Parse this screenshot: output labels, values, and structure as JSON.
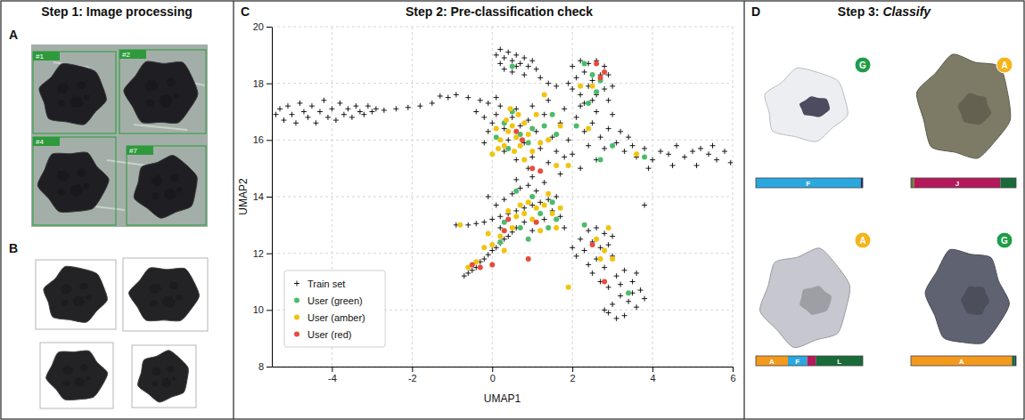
{
  "panels": [
    {
      "title": "Step 1: Image processing",
      "letters": [
        "A",
        "B"
      ],
      "detections": [
        "#1",
        "#2",
        "#4",
        "#7"
      ]
    },
    {
      "title": "Step 2: Pre-classification check",
      "letter": "C"
    },
    {
      "title": "Step 3: Classify",
      "letter": "D",
      "badges": [
        {
          "text": "G",
          "color": "#1f9d48"
        },
        {
          "text": "A",
          "color": "#f4b41a"
        },
        {
          "text": "A",
          "color": "#f4b41a"
        },
        {
          "text": "G",
          "color": "#1f9d48"
        }
      ]
    }
  ],
  "chart_data": [
    {
      "type": "scatter",
      "xlabel": "UMAP1",
      "ylabel": "UMAP2",
      "xlim": [
        -5.5,
        6
      ],
      "ylim": [
        8,
        20
      ],
      "xticks": [
        -4,
        -2,
        0,
        2,
        4,
        6
      ],
      "yticks": [
        8,
        10,
        12,
        14,
        16,
        18,
        20
      ],
      "grid": true,
      "legend": "lower left",
      "series": [
        {
          "name": "Train set",
          "color": "#000000",
          "marker": "plus",
          "x": [
            -5.4,
            -5.3,
            -5.2,
            -5.1,
            -5.0,
            -4.9,
            -4.8,
            -4.7,
            -4.6,
            -4.5,
            -4.4,
            -4.3,
            -4.2,
            -4.1,
            -4.0,
            -3.9,
            -3.8,
            -3.7,
            -3.6,
            -3.5,
            -3.4,
            -3.3,
            -3.2,
            -3.1,
            -3.0,
            -2.9,
            -2.7,
            -2.4,
            -2.1,
            -1.8,
            -1.5,
            -1.3,
            -1.1,
            -0.9,
            -0.6,
            -0.3,
            -0.1,
            -0.4,
            -0.2,
            0.1,
            0.2,
            0.3,
            0.4,
            0.5,
            0.6,
            0.7,
            0.8,
            0.9,
            1.0,
            0.3,
            0.5,
            0.2,
            0.8,
            1.1,
            0.6,
            1.2,
            1.4,
            1.6,
            2.0,
            2.2,
            2.4,
            2.6,
            2.8,
            2.9,
            2.1,
            2.3,
            2.5,
            2.7,
            2.0,
            2.2,
            2.4,
            2.6,
            2.8,
            3.0,
            2.3,
            2.5,
            2.9,
            1.9,
            -0.1,
            0.0,
            0.1,
            0.2,
            0.3,
            0.4,
            0.5,
            0.6,
            0.7,
            0.8,
            0.9,
            1.0,
            1.1,
            1.2,
            1.3,
            1.4,
            1.5,
            1.6,
            1.7,
            1.8,
            1.9,
            2.0,
            2.1,
            2.2,
            2.3,
            2.4,
            2.5,
            2.6,
            2.7,
            2.8,
            2.9,
            3.0,
            3.1,
            3.2,
            3.3,
            3.4,
            3.5,
            1.0,
            1.4,
            0.3,
            0.6,
            2.2,
            2.6,
            1.8,
            0.1,
            -0.2,
            3.6,
            3.8,
            4.0,
            4.2,
            4.4,
            4.6,
            4.8,
            5.0,
            5.2,
            5.4,
            5.6,
            5.8,
            5.95,
            4.5,
            5.1,
            3.9,
            5.5,
            1.7,
            0.9,
            1.0,
            3.8,
            -0.7,
            -0.6,
            -0.5,
            -0.4,
            -0.3,
            -0.2,
            -0.1,
            0.0,
            0.1,
            0.2,
            0.3,
            0.4,
            0.5,
            0.6,
            -0.6,
            -0.4,
            -0.2,
            0.0,
            0.2,
            0.4,
            0.6,
            0.8,
            1.0,
            1.2,
            1.4,
            1.6,
            0.1,
            0.3,
            0.5,
            0.7,
            0.9,
            1.1,
            1.3,
            0.2,
            0.8,
            1.0,
            1.3,
            1.5,
            1.7,
            0.6,
            -0.1,
            1.8,
            -0.9,
            2.4,
            2.6,
            2.8,
            3.0,
            2.2,
            2.5,
            2.7,
            2.9,
            2.3,
            2.6,
            2.8,
            2.4,
            2.1,
            3.0,
            2.7,
            2.9,
            3.1,
            3.3,
            3.5,
            3.7,
            3.2,
            3.4,
            3.0,
            2.8,
            3.6,
            3.1,
            2.9,
            3.3,
            3.8,
            2.5,
            3.2,
            3.5,
            2.0,
            3.6
          ],
          "values": [
            16.9,
            17.1,
            16.7,
            17.2,
            16.9,
            16.6,
            17.3,
            17.0,
            16.8,
            17.2,
            16.6,
            17.0,
            17.4,
            16.8,
            17.1,
            16.7,
            17.3,
            16.9,
            17.1,
            16.8,
            17.2,
            17.0,
            16.9,
            17.2,
            17.0,
            17.1,
            17.05,
            17.1,
            17.15,
            17.2,
            17.3,
            17.55,
            17.5,
            17.6,
            17.5,
            17.4,
            17.3,
            17.0,
            16.8,
            19.0,
            19.2,
            18.9,
            19.1,
            18.8,
            19.0,
            18.7,
            18.9,
            18.6,
            18.8,
            18.5,
            18.4,
            18.7,
            18.3,
            18.5,
            18.6,
            18.2,
            18.0,
            17.9,
            18.6,
            18.8,
            18.7,
            18.8,
            18.6,
            18.3,
            18.2,
            18.4,
            18.1,
            18.3,
            17.8,
            17.6,
            17.9,
            17.6,
            17.8,
            17.9,
            17.3,
            17.4,
            17.4,
            18.0,
            16.3,
            16.6,
            16.9,
            17.2,
            16.4,
            16.0,
            16.8,
            17.1,
            16.5,
            15.9,
            16.7,
            17.2,
            16.3,
            15.7,
            16.9,
            17.4,
            16.1,
            15.6,
            16.6,
            17.1,
            16.0,
            15.5,
            16.8,
            17.2,
            16.3,
            15.8,
            16.6,
            17.0,
            16.1,
            15.7,
            16.4,
            16.9,
            15.9,
            16.3,
            15.6,
            16.1,
            15.8,
            15.4,
            15.2,
            15.6,
            15.3,
            15.0,
            15.3,
            15.4,
            17.5,
            15.9,
            15.4,
            15.7,
            15.3,
            15.6,
            15.5,
            15.8,
            15.4,
            15.6,
            15.7,
            15.5,
            15.3,
            15.6,
            15.2,
            15.1,
            15.1,
            15.0,
            15.8,
            14.8,
            15.0,
            14.7,
            13.7,
            11.2,
            11.3,
            11.4,
            11.5,
            11.7,
            11.8,
            11.95,
            12.1,
            12.2,
            12.35,
            12.5,
            12.6,
            12.75,
            12.9,
            13.0,
            13.05,
            13.1,
            13.2,
            13.3,
            13.4,
            13.5,
            13.6,
            13.7,
            13.8,
            13.9,
            14.0,
            13.7,
            13.9,
            14.1,
            14.3,
            14.4,
            14.2,
            14.5,
            12.9,
            13.1,
            12.8,
            13.2,
            13.5,
            13.3,
            14.6,
            14.0,
            12.9,
            13.0,
            12.8,
            12.9,
            12.7,
            12.6,
            12.5,
            12.4,
            12.2,
            12.3,
            12.1,
            11.8,
            11.5,
            11.6,
            11.9,
            11.9,
            11.0,
            10.8,
            11.2,
            11.4,
            11.0,
            10.7,
            10.5,
            10.3,
            10.2,
            10.0,
            10.1,
            9.7,
            9.9,
            9.8,
            10.4,
            11.3,
            10.9,
            10.6,
            12.2,
            11.3
          ]
        },
        {
          "name": "User (green)",
          "color": "#4cbb6c",
          "marker": "circle",
          "x": [
            0.3,
            0.5,
            0.7,
            1.0,
            1.3,
            1.5,
            0.9,
            1.6,
            0.4,
            2.3,
            2.5,
            2.7,
            2.4,
            2.6,
            2.1,
            2.7,
            3.0,
            0.5,
            0.9,
            1.2,
            1.5,
            1.0,
            0.3,
            0.7,
            1.6,
            3.4,
            1.4,
            0.2,
            0.1,
            2.3,
            3.8,
            0.6
          ],
          "values": [
            16.6,
            17.0,
            16.2,
            16.4,
            16.5,
            16.9,
            15.9,
            16.2,
            15.7,
            18.7,
            18.3,
            18.1,
            17.3,
            17.7,
            16.5,
            15.3,
            15.8,
            18.6,
            12.5,
            13.4,
            13.8,
            14.0,
            13.1,
            12.9,
            13.2,
            10.6,
            12.9,
            12.4,
            16.1,
            13.0,
            15.4,
            14.2
          ]
        },
        {
          "name": "User (amber)",
          "color": "#f1c40f",
          "marker": "circle",
          "x": [
            0.1,
            0.2,
            0.3,
            0.4,
            0.5,
            0.6,
            0.7,
            0.8,
            0.9,
            1.0,
            0.35,
            0.55,
            0.15,
            0.45,
            1.1,
            1.2,
            1.4,
            1.7,
            0.65,
            1.9,
            2.2,
            2.5,
            0.0,
            0.8,
            1.6,
            0.6,
            0.8,
            1.0,
            1.1,
            1.3,
            1.5,
            1.7,
            0.9,
            1.4,
            0.5,
            0.4,
            1.2,
            0.7,
            1.6,
            -0.2,
            0.0,
            -0.4,
            0.2,
            -0.1,
            -0.6,
            0.3,
            -0.8,
            2.6,
            2.8,
            2.7,
            3.0,
            2.9,
            1.9,
            3.6,
            2.4,
            1.3
          ],
          "values": [
            16.4,
            16.0,
            15.8,
            16.3,
            16.5,
            16.1,
            15.8,
            16.6,
            16.2,
            15.6,
            16.7,
            15.6,
            15.7,
            17.1,
            16.9,
            15.9,
            16.0,
            16.5,
            16.9,
            15.1,
            17.9,
            17.9,
            15.5,
            15.3,
            15.1,
            13.3,
            13.4,
            13.2,
            13.6,
            13.7,
            13.4,
            13.6,
            13.8,
            14.1,
            12.9,
            13.5,
            12.8,
            13.7,
            12.9,
            12.2,
            12.3,
            11.7,
            12.6,
            12.7,
            11.5,
            12.1,
            13.0,
            12.5,
            12.1,
            11.8,
            11.8,
            12.9,
            10.8,
            15.5,
            16.4,
            17.6
          ]
        },
        {
          "name": "User (red)",
          "color": "#e74c3c",
          "marker": "circle",
          "x": [
            0.6,
            0.75,
            2.6,
            2.8,
            2.7,
            1.0,
            1.2,
            0.9,
            0.0,
            -0.5,
            -0.3,
            0.3,
            2.5,
            2.8,
            1.1,
            0.4
          ],
          "values": [
            16.3,
            16.0,
            18.7,
            18.4,
            18.2,
            15.0,
            14.9,
            11.8,
            11.6,
            11.6,
            11.5,
            12.8,
            12.3,
            11.0,
            13.1,
            13.2
          ]
        }
      ]
    },
    {
      "type": "bar",
      "orientation": "horizontal",
      "stacked": true,
      "tick_labels": false,
      "xlim": [
        0,
        100
      ],
      "categories": [
        null,
        null,
        null,
        null
      ],
      "series": [
        {
          "color": "#6b7a3a",
          "values": [
            0,
            3,
            0,
            0
          ],
          "labels": [
            null,
            null,
            null,
            null
          ]
        },
        {
          "color": "#f39a1e",
          "values": [
            0,
            0,
            30,
            96
          ],
          "labels": [
            null,
            null,
            "A",
            "A"
          ]
        },
        {
          "color": "#2aa7de",
          "values": [
            98,
            0,
            18,
            0
          ],
          "labels": [
            "F",
            null,
            "F",
            null
          ]
        },
        {
          "color": "#b5195b",
          "values": [
            0,
            82,
            8,
            0
          ],
          "labels": [
            null,
            "J",
            null,
            null
          ]
        },
        {
          "color": "#1a6b3a",
          "values": [
            0,
            15,
            44,
            3
          ],
          "labels": [
            null,
            null,
            "L",
            null
          ]
        },
        {
          "color": "#1c2e6b",
          "values": [
            2,
            0,
            0,
            1
          ],
          "labels": [
            null,
            null,
            null,
            null
          ]
        }
      ]
    }
  ]
}
